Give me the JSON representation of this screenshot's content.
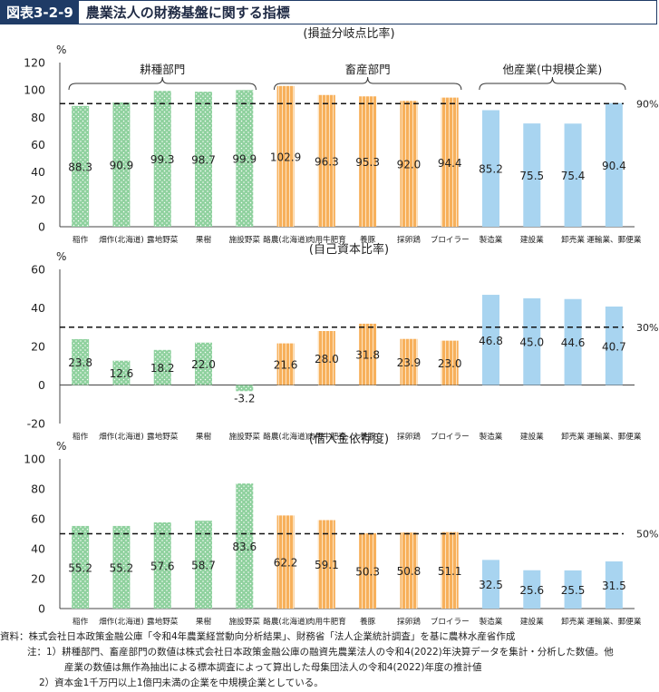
{
  "header": {
    "figure_label": "図表3-2-9",
    "title": "農業法人の財務基盤に関する指標"
  },
  "group_labels": [
    "耕種部門",
    "畜産部門",
    "他産業(中規模企業)"
  ],
  "colors": {
    "crop": "#8fd19e",
    "livestock": "#f7b05b",
    "other": "#a8d4f0"
  },
  "chart_data": [
    {
      "type": "bar",
      "title": "(損益分岐点比率)",
      "ylabel": "%",
      "ylim": [
        0,
        120
      ],
      "yticks": [
        0,
        20,
        40,
        60,
        80,
        100,
        120
      ],
      "reference_line": {
        "value": 90,
        "label": "90%"
      },
      "categories": [
        "稲作",
        "畑作(北海道)",
        "露地野菜",
        "果樹",
        "施設野菜",
        "酪農(北海道)",
        "肉用牛肥育",
        "養豚",
        "採卵鶏",
        "ブロイラー",
        "製造業",
        "建設業",
        "卸売業",
        "運輸業、郵便業"
      ],
      "values": [
        88.3,
        90.9,
        99.3,
        98.7,
        99.9,
        102.9,
        96.3,
        95.3,
        92.0,
        94.4,
        85.2,
        75.5,
        75.4,
        90.4
      ],
      "value_labels": [
        "88.3",
        "90.9",
        "99.3",
        "98.7",
        "99.9",
        "102.9",
        "96.3",
        "95.3",
        "92.0",
        "94.4",
        "85.2",
        "75.5",
        "75.4",
        "90.4"
      ]
    },
    {
      "type": "bar",
      "title": "(自己資本比率)",
      "ylabel": "%",
      "ylim": [
        -20,
        60
      ],
      "yticks": [
        -20,
        0,
        20,
        40,
        60
      ],
      "reference_line": {
        "value": 30,
        "label": "30%"
      },
      "categories": [
        "稲作",
        "畑作(北海道)",
        "露地野菜",
        "果樹",
        "施設野菜",
        "酪農(北海道)",
        "肉用牛肥育",
        "養豚",
        "採卵鶏",
        "ブロイラー",
        "製造業",
        "建設業",
        "卸売業",
        "運輸業、郵便業"
      ],
      "values": [
        23.8,
        12.6,
        18.2,
        22.0,
        -3.2,
        21.6,
        28.0,
        31.8,
        23.9,
        23.0,
        46.8,
        45.0,
        44.6,
        40.7
      ],
      "value_labels": [
        "23.8",
        "12.6",
        "18.2",
        "22.0",
        "-3.2",
        "21.6",
        "28.0",
        "31.8",
        "23.9",
        "23.0",
        "46.8",
        "45.0",
        "44.6",
        "40.7"
      ]
    },
    {
      "type": "bar",
      "title": "(借入金依存度)",
      "ylabel": "%",
      "ylim": [
        0,
        100
      ],
      "yticks": [
        0,
        20,
        40,
        60,
        80,
        100
      ],
      "reference_line": {
        "value": 50,
        "label": "50%"
      },
      "categories": [
        "稲作",
        "畑作(北海道)",
        "露地野菜",
        "果樹",
        "施設野菜",
        "酪農(北海道)",
        "肉用牛肥育",
        "養豚",
        "採卵鶏",
        "ブロイラー",
        "製造業",
        "建設業",
        "卸売業",
        "運輸業、郵便業"
      ],
      "values": [
        55.2,
        55.2,
        57.6,
        58.7,
        83.6,
        62.2,
        59.1,
        50.3,
        50.8,
        51.1,
        32.5,
        25.6,
        25.5,
        31.5
      ],
      "value_labels": [
        "55.2",
        "55.2",
        "57.6",
        "58.7",
        "83.6",
        "62.2",
        "59.1",
        "50.3",
        "50.8",
        "51.1",
        "32.5",
        "25.6",
        "25.5",
        "31.5"
      ]
    }
  ],
  "notes": {
    "source": "資料：株式会社日本政策金融公庫「令和4年農業経営動向分析結果」、財務省「法人企業統計調査」を基に農林水産省作成",
    "note1a": "注：1）耕種部門、畜産部門の数値は株式会社日本政策金融公庫の融資先農業法人の令和4(2022)年決算データを集計・分析した数値。他",
    "note1b": "産業の数値は無作為抽出による標本調査によって算出した母集団法人の令和4(2022)年度の推計値",
    "note2": "2）資本金1千万円以上1億円未満の企業を中規模企業としている。"
  }
}
